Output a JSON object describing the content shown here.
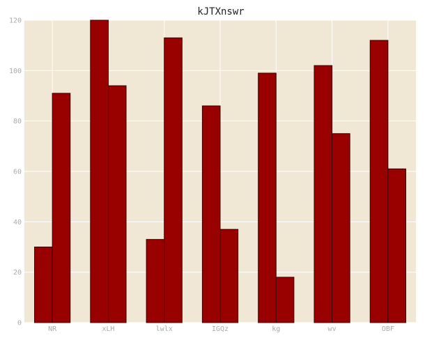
{
  "colors": {
    "plot_background": "#f0e8d4",
    "grid": "#ffffff",
    "bar_fill": "#990000",
    "bar_edge": "#3a0000",
    "tick_text": "#aaaaaa",
    "title_text": "#222222"
  },
  "chart_data": {
    "type": "bar",
    "title": "kJTXnswr",
    "xlabel": "",
    "ylabel": "",
    "categories": [
      "NR",
      "xLH",
      "lwlx",
      "IGQz",
      "kg",
      "wv",
      "OBF"
    ],
    "series": [
      {
        "values": [
          30,
          120,
          33,
          86,
          99,
          102,
          112
        ]
      },
      {
        "values": [
          91,
          94,
          113,
          37,
          18,
          75,
          61
        ]
      }
    ],
    "ylim": [
      0,
      120
    ],
    "yticks": [
      0,
      20,
      40,
      60,
      80,
      100,
      120
    ],
    "grid": true,
    "legend": "none"
  }
}
